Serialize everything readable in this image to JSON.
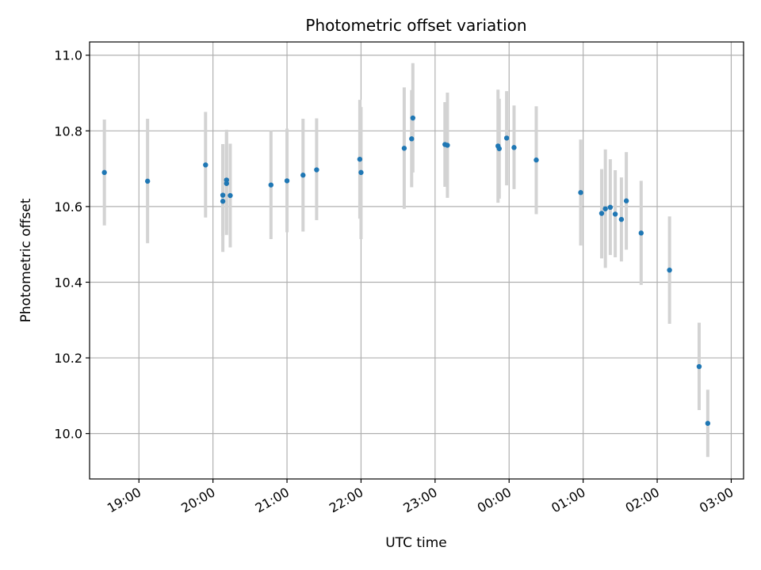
{
  "chart_data": {
    "type": "scatter",
    "title": "Photometric offset variation",
    "xlabel": "UTC time",
    "ylabel": "Photometric offset",
    "grid": true,
    "xlim": [
      "18:20",
      "03:10"
    ],
    "ylim": [
      9.88,
      11.035
    ],
    "x_ticks": [
      "19:00",
      "20:00",
      "21:00",
      "22:00",
      "23:00",
      "00:00",
      "01:00",
      "02:00",
      "03:00"
    ],
    "y_ticks": [
      "10.0",
      "10.2",
      "10.4",
      "10.6",
      "10.8",
      "11.0"
    ],
    "colors": {
      "points": "#1f77b4",
      "error_bars": "#d3d3d3",
      "grid": "#b0b0b0"
    },
    "points": [
      {
        "x": "18:32",
        "y": 10.69,
        "ylow": 10.55,
        "yhigh": 10.83
      },
      {
        "x": "19:07",
        "y": 10.667,
        "ylow": 10.503,
        "yhigh": 10.832
      },
      {
        "x": "19:54",
        "y": 10.71,
        "ylow": 10.571,
        "yhigh": 10.85
      },
      {
        "x": "20:08",
        "y": 10.614,
        "ylow": 10.521,
        "yhigh": 10.765
      },
      {
        "x": "20:08",
        "y": 10.63,
        "ylow": 10.48,
        "yhigh": 10.765
      },
      {
        "x": "20:11",
        "y": 10.67,
        "ylow": 10.538,
        "yhigh": 10.803
      },
      {
        "x": "20:11",
        "y": 10.661,
        "ylow": 10.525,
        "yhigh": 10.795
      },
      {
        "x": "20:14",
        "y": 10.629,
        "ylow": 10.492,
        "yhigh": 10.766
      },
      {
        "x": "20:47",
        "y": 10.657,
        "ylow": 10.514,
        "yhigh": 10.8
      },
      {
        "x": "21:00",
        "y": 10.668,
        "ylow": 10.532,
        "yhigh": 10.806
      },
      {
        "x": "21:13",
        "y": 10.683,
        "ylow": 10.534,
        "yhigh": 10.832
      },
      {
        "x": "21:24",
        "y": 10.697,
        "ylow": 10.564,
        "yhigh": 10.833
      },
      {
        "x": "21:59",
        "y": 10.725,
        "ylow": 10.568,
        "yhigh": 10.882
      },
      {
        "x": "22:00",
        "y": 10.69,
        "ylow": 10.514,
        "yhigh": 10.863
      },
      {
        "x": "22:35",
        "y": 10.754,
        "ylow": 10.594,
        "yhigh": 10.915
      },
      {
        "x": "22:41",
        "y": 10.779,
        "ylow": 10.651,
        "yhigh": 10.908
      },
      {
        "x": "22:42",
        "y": 10.834,
        "ylow": 10.69,
        "yhigh": 10.979
      },
      {
        "x": "23:08",
        "y": 10.764,
        "ylow": 10.652,
        "yhigh": 10.876
      },
      {
        "x": "23:10",
        "y": 10.762,
        "ylow": 10.623,
        "yhigh": 10.901
      },
      {
        "x": "23:51",
        "y": 10.76,
        "ylow": 10.61,
        "yhigh": 10.909
      },
      {
        "x": "23:52",
        "y": 10.753,
        "ylow": 10.621,
        "yhigh": 10.885
      },
      {
        "x": "23:58",
        "y": 10.781,
        "ylow": 10.656,
        "yhigh": 10.905
      },
      {
        "x": "00:04",
        "y": 10.756,
        "ylow": 10.646,
        "yhigh": 10.867
      },
      {
        "x": "00:22",
        "y": 10.723,
        "ylow": 10.58,
        "yhigh": 10.865
      },
      {
        "x": "00:58",
        "y": 10.637,
        "ylow": 10.497,
        "yhigh": 10.777
      },
      {
        "x": "01:15",
        "y": 10.582,
        "ylow": 10.463,
        "yhigh": 10.699
      },
      {
        "x": "01:18",
        "y": 10.594,
        "ylow": 10.438,
        "yhigh": 10.751
      },
      {
        "x": "01:22",
        "y": 10.598,
        "ylow": 10.472,
        "yhigh": 10.725
      },
      {
        "x": "01:26",
        "y": 10.58,
        "ylow": 10.466,
        "yhigh": 10.696
      },
      {
        "x": "01:31",
        "y": 10.566,
        "ylow": 10.455,
        "yhigh": 10.677
      },
      {
        "x": "01:35",
        "y": 10.615,
        "ylow": 10.486,
        "yhigh": 10.744
      },
      {
        "x": "01:47",
        "y": 10.53,
        "ylow": 10.393,
        "yhigh": 10.668
      },
      {
        "x": "02:10",
        "y": 10.432,
        "ylow": 10.29,
        "yhigh": 10.574
      },
      {
        "x": "02:34",
        "y": 10.177,
        "ylow": 10.062,
        "yhigh": 10.293
      },
      {
        "x": "02:41",
        "y": 10.027,
        "ylow": 9.938,
        "yhigh": 10.116
      }
    ]
  }
}
